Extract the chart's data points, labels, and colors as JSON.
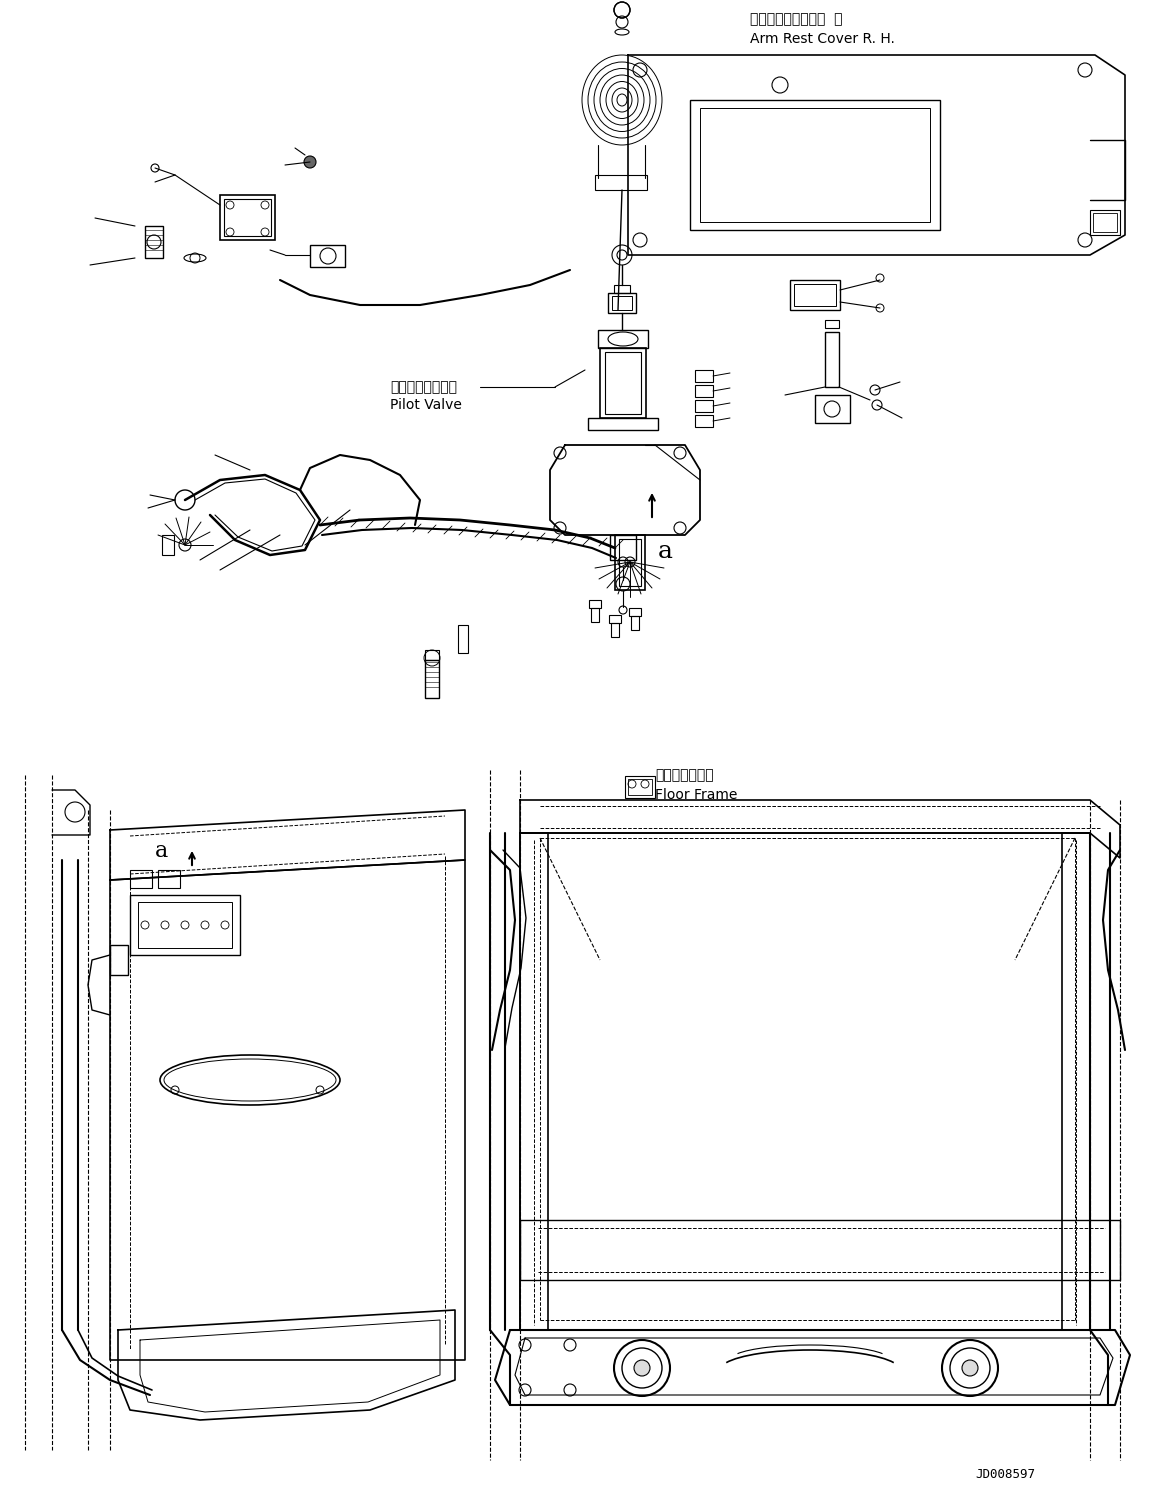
{
  "background_color": "#ffffff",
  "line_color": "#000000",
  "figure_width": 11.57,
  "figure_height": 14.91,
  "dpi": 100,
  "label_arm_rest_jp": "アームレストカバー  右",
  "label_arm_rest_en": "Arm Rest Cover R. H.",
  "label_pilot_valve_jp": "パイロットバルブ",
  "label_pilot_valve_en": "Pilot Valve",
  "label_floor_frame_jp": "フロアフレーム",
  "label_floor_frame_en": "Floor Frame",
  "label_jd": "JD008597",
  "label_a1": "a",
  "label_a2": "a"
}
